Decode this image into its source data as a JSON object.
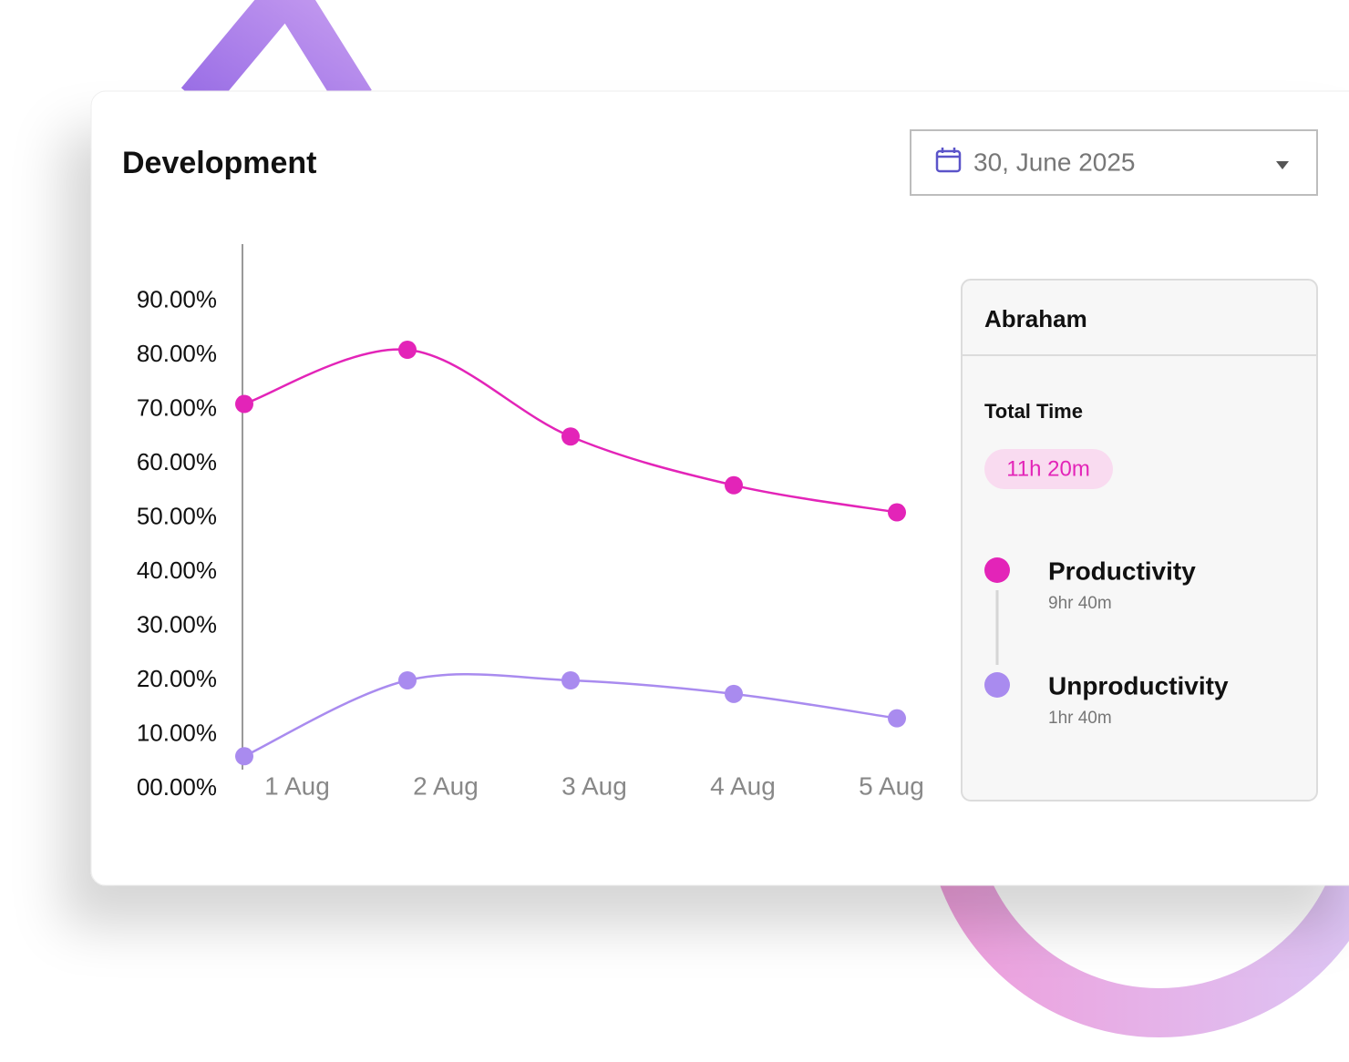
{
  "header": {
    "title": "Development",
    "date": "30, June 2025"
  },
  "chart_data": {
    "type": "line",
    "categories": [
      "1 Aug",
      "2 Aug",
      "3 Aug",
      "4 Aug",
      "5 Aug"
    ],
    "series": [
      {
        "name": "Productivity",
        "color": "#e324b8",
        "values": [
          71,
          81,
          65,
          56,
          51
        ]
      },
      {
        "name": "Unproductivity",
        "color": "#a98bef",
        "values": [
          6,
          20,
          20,
          17.5,
          13
        ]
      }
    ],
    "ylim": [
      0,
      100
    ],
    "yticks": [
      {
        "value": 0,
        "label": "00.00%"
      },
      {
        "value": 10,
        "label": "10.00%"
      },
      {
        "value": 20,
        "label": "20.00%"
      },
      {
        "value": 30,
        "label": "30.00%"
      },
      {
        "value": 40,
        "label": "40.00%"
      },
      {
        "value": 50,
        "label": "50.00%"
      },
      {
        "value": 60,
        "label": "60.00%"
      },
      {
        "value": 70,
        "label": "70.00%"
      },
      {
        "value": 80,
        "label": "80.00%"
      },
      {
        "value": 90,
        "label": "90.00%"
      }
    ],
    "grid": false
  },
  "panel": {
    "name": "Abraham",
    "total_label": "Total Time",
    "total": "11h 20m",
    "details": [
      "9hr 40m",
      "1hr 40m"
    ]
  }
}
